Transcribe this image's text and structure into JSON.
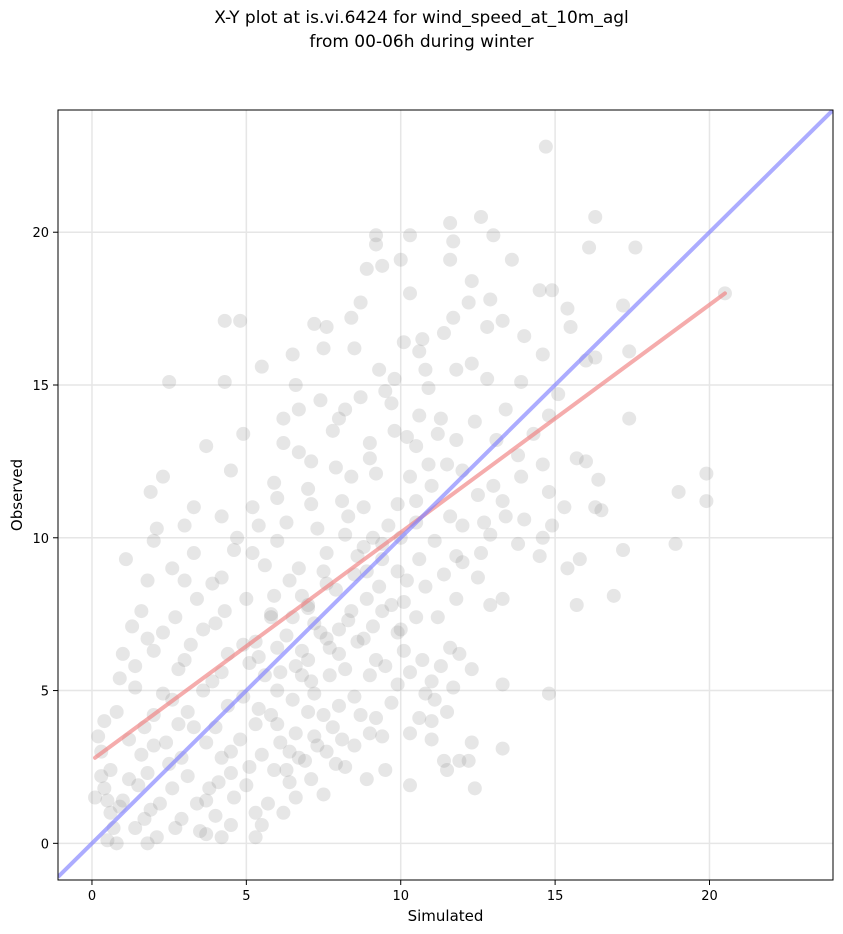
{
  "chart_data": {
    "type": "scatter",
    "title_line1": "X-Y plot at is.vi.6424 for wind_speed_at_10m_agl",
    "title_line2": "from 00-06h during winter",
    "xlabel": "Simulated",
    "ylabel": "Observed",
    "xlim": [
      -1.1,
      24
    ],
    "ylim": [
      -1.2,
      24
    ],
    "xticks": [
      0,
      5,
      10,
      15,
      20
    ],
    "yticks": [
      0,
      5,
      10,
      15,
      20
    ],
    "grid": true,
    "colors": {
      "points": "#808080",
      "fit_line": "#f08080",
      "identity_line": "#7f7fff",
      "grid": "#e6e6e6"
    },
    "regression_line": {
      "x": [
        0.1,
        20.5
      ],
      "y": [
        2.8,
        18.0
      ]
    },
    "identity_line": {
      "x": [
        -1.1,
        24
      ],
      "y": [
        -1.1,
        24
      ]
    },
    "points_sample": [
      [
        14.7,
        22.8
      ],
      [
        12.6,
        20.5
      ],
      [
        16.3,
        20.5
      ],
      [
        11.6,
        20.3
      ],
      [
        9.2,
        19.9
      ],
      [
        10.3,
        19.9
      ],
      [
        13.0,
        19.9
      ],
      [
        11.7,
        19.7
      ],
      [
        16.1,
        19.5
      ],
      [
        17.6,
        19.5
      ],
      [
        9.2,
        19.6
      ],
      [
        10.0,
        19.1
      ],
      [
        11.6,
        19.1
      ],
      [
        13.6,
        19.1
      ],
      [
        9.4,
        18.9
      ],
      [
        8.9,
        18.8
      ],
      [
        12.3,
        18.4
      ],
      [
        14.5,
        18.1
      ],
      [
        14.9,
        18.1
      ],
      [
        20.5,
        18.0
      ],
      [
        10.3,
        18.0
      ],
      [
        12.9,
        17.8
      ],
      [
        12.2,
        17.7
      ],
      [
        8.7,
        17.7
      ],
      [
        15.4,
        17.5
      ],
      [
        17.2,
        17.6
      ],
      [
        11.7,
        17.2
      ],
      [
        8.4,
        17.2
      ],
      [
        13.3,
        17.1
      ],
      [
        7.2,
        17.0
      ],
      [
        4.3,
        17.1
      ],
      [
        4.8,
        17.1
      ],
      [
        7.6,
        16.9
      ],
      [
        14.0,
        16.6
      ],
      [
        15.5,
        16.9
      ],
      [
        12.8,
        16.9
      ],
      [
        10.7,
        16.5
      ],
      [
        10.1,
        16.4
      ],
      [
        8.5,
        16.2
      ],
      [
        7.5,
        16.2
      ],
      [
        6.5,
        16.0
      ],
      [
        14.6,
        16.0
      ],
      [
        17.4,
        16.1
      ],
      [
        16.0,
        15.8
      ],
      [
        16.3,
        15.9
      ],
      [
        9.3,
        15.5
      ],
      [
        10.8,
        15.5
      ],
      [
        5.5,
        15.6
      ],
      [
        2.5,
        15.1
      ],
      [
        4.3,
        15.1
      ],
      [
        6.6,
        15.0
      ],
      [
        12.8,
        15.2
      ],
      [
        13.9,
        15.1
      ],
      [
        11.8,
        15.5
      ],
      [
        9.7,
        14.4
      ],
      [
        8.2,
        14.2
      ],
      [
        6.7,
        14.2
      ],
      [
        10.6,
        14.0
      ],
      [
        12.4,
        13.8
      ],
      [
        15.1,
        14.7
      ],
      [
        14.8,
        14.0
      ],
      [
        17.4,
        13.9
      ],
      [
        9.8,
        13.5
      ],
      [
        11.2,
        13.4
      ],
      [
        4.9,
        13.4
      ],
      [
        6.2,
        13.1
      ],
      [
        3.7,
        13.0
      ],
      [
        10.5,
        13.0
      ],
      [
        13.8,
        12.7
      ],
      [
        16.0,
        12.5
      ],
      [
        14.6,
        12.4
      ],
      [
        15.7,
        12.6
      ],
      [
        2.3,
        12.0
      ],
      [
        4.5,
        12.2
      ],
      [
        7.9,
        12.3
      ],
      [
        9.2,
        12.1
      ],
      [
        10.3,
        12.0
      ],
      [
        11.0,
        11.7
      ],
      [
        13.0,
        11.7
      ],
      [
        16.4,
        11.9
      ],
      [
        19.9,
        12.1
      ],
      [
        14.8,
        11.5
      ],
      [
        12.5,
        11.4
      ],
      [
        19.0,
        11.5
      ],
      [
        19.9,
        11.2
      ],
      [
        1.9,
        11.5
      ],
      [
        3.3,
        11.0
      ],
      [
        5.2,
        11.0
      ],
      [
        7.1,
        11.1
      ],
      [
        8.8,
        11.0
      ],
      [
        15.3,
        11.0
      ],
      [
        16.5,
        10.9
      ],
      [
        10.5,
        10.5
      ],
      [
        11.6,
        10.7
      ],
      [
        13.4,
        10.7
      ],
      [
        14.0,
        10.6
      ],
      [
        14.9,
        10.4
      ],
      [
        16.3,
        11.0
      ],
      [
        2.1,
        10.3
      ],
      [
        4.7,
        10.0
      ],
      [
        6.0,
        9.9
      ],
      [
        8.2,
        10.1
      ],
      [
        9.1,
        10.0
      ],
      [
        12.9,
        10.1
      ],
      [
        13.8,
        9.8
      ],
      [
        14.6,
        10.0
      ],
      [
        2.0,
        9.9
      ],
      [
        1.1,
        9.3
      ],
      [
        3.3,
        9.5
      ],
      [
        5.2,
        9.5
      ],
      [
        7.6,
        9.5
      ],
      [
        9.4,
        9.3
      ],
      [
        10.6,
        9.3
      ],
      [
        11.8,
        9.4
      ],
      [
        14.5,
        9.4
      ],
      [
        15.8,
        9.3
      ],
      [
        17.2,
        9.6
      ],
      [
        18.9,
        9.8
      ],
      [
        15.4,
        9.0
      ],
      [
        1.8,
        8.6
      ],
      [
        3.0,
        8.6
      ],
      [
        4.2,
        8.7
      ],
      [
        6.4,
        8.6
      ],
      [
        7.6,
        8.5
      ],
      [
        8.5,
        8.8
      ],
      [
        10.2,
        8.6
      ],
      [
        11.4,
        8.8
      ],
      [
        12.5,
        8.7
      ],
      [
        3.4,
        8.0
      ],
      [
        5.9,
        8.1
      ],
      [
        8.9,
        8.0
      ],
      [
        10.1,
        7.9
      ],
      [
        11.8,
        8.0
      ],
      [
        13.3,
        8.0
      ],
      [
        15.7,
        7.8
      ],
      [
        16.9,
        8.1
      ],
      [
        12.9,
        7.8
      ],
      [
        11.2,
        7.4
      ],
      [
        1.6,
        7.6
      ],
      [
        2.7,
        7.4
      ],
      [
        4.3,
        7.6
      ],
      [
        5.8,
        7.5
      ],
      [
        7.0,
        7.7
      ],
      [
        8.3,
        7.3
      ],
      [
        9.4,
        7.6
      ],
      [
        10.5,
        7.4
      ],
      [
        1.3,
        7.1
      ],
      [
        2.3,
        6.9
      ],
      [
        3.6,
        7.0
      ],
      [
        6.3,
        6.8
      ],
      [
        7.4,
        6.9
      ],
      [
        8.6,
        6.6
      ],
      [
        9.9,
        6.9
      ],
      [
        11.6,
        6.4
      ],
      [
        1.0,
        6.2
      ],
      [
        2.0,
        6.3
      ],
      [
        3.2,
        6.5
      ],
      [
        4.4,
        6.2
      ],
      [
        5.4,
        6.1
      ],
      [
        6.8,
        6.3
      ],
      [
        8.0,
        6.2
      ],
      [
        9.2,
        6.0
      ],
      [
        10.7,
        6.0
      ],
      [
        11.9,
        6.2
      ],
      [
        12.3,
        5.7
      ],
      [
        1.4,
        5.8
      ],
      [
        2.8,
        5.7
      ],
      [
        4.2,
        5.6
      ],
      [
        5.6,
        5.5
      ],
      [
        6.6,
        5.8
      ],
      [
        7.7,
        5.5
      ],
      [
        9.0,
        5.5
      ],
      [
        10.3,
        5.6
      ],
      [
        11.3,
        5.8
      ],
      [
        13.3,
        5.2
      ],
      [
        11.7,
        5.1
      ],
      [
        14.8,
        4.9
      ],
      [
        1.4,
        5.1
      ],
      [
        2.3,
        4.9
      ],
      [
        3.6,
        5.0
      ],
      [
        4.9,
        4.8
      ],
      [
        6.0,
        5.0
      ],
      [
        7.2,
        4.9
      ],
      [
        8.5,
        4.8
      ],
      [
        9.7,
        4.6
      ],
      [
        11.1,
        4.7
      ],
      [
        0.8,
        4.3
      ],
      [
        2.0,
        4.2
      ],
      [
        3.1,
        4.3
      ],
      [
        4.4,
        4.5
      ],
      [
        5.8,
        4.2
      ],
      [
        7.0,
        4.3
      ],
      [
        8.0,
        4.5
      ],
      [
        9.2,
        4.1
      ],
      [
        10.6,
        4.1
      ],
      [
        11.0,
        4.0
      ],
      [
        11.5,
        4.3
      ],
      [
        0.4,
        4.0
      ],
      [
        1.7,
        3.8
      ],
      [
        2.8,
        3.9
      ],
      [
        4.0,
        3.8
      ],
      [
        5.3,
        3.9
      ],
      [
        6.6,
        3.6
      ],
      [
        7.8,
        3.8
      ],
      [
        9.0,
        3.6
      ],
      [
        10.3,
        3.6
      ],
      [
        0.2,
        3.5
      ],
      [
        1.2,
        3.4
      ],
      [
        2.4,
        3.3
      ],
      [
        3.7,
        3.3
      ],
      [
        4.8,
        3.4
      ],
      [
        6.1,
        3.3
      ],
      [
        7.3,
        3.2
      ],
      [
        8.5,
        3.2
      ],
      [
        9.4,
        3.5
      ],
      [
        11.0,
        3.4
      ],
      [
        12.3,
        3.3
      ],
      [
        13.3,
        3.1
      ],
      [
        0.3,
        3.0
      ],
      [
        1.6,
        2.9
      ],
      [
        2.9,
        2.8
      ],
      [
        4.2,
        2.8
      ],
      [
        5.5,
        2.9
      ],
      [
        6.7,
        2.8
      ],
      [
        7.9,
        2.6
      ],
      [
        9.5,
        2.4
      ],
      [
        11.9,
        2.7
      ],
      [
        12.2,
        2.7
      ],
      [
        0.6,
        2.4
      ],
      [
        1.8,
        2.3
      ],
      [
        3.1,
        2.2
      ],
      [
        4.5,
        2.3
      ],
      [
        5.9,
        2.4
      ],
      [
        7.1,
        2.1
      ],
      [
        8.2,
        2.5
      ],
      [
        11.4,
        2.7
      ],
      [
        11.5,
        2.4
      ],
      [
        0.4,
        1.8
      ],
      [
        1.5,
        1.9
      ],
      [
        2.6,
        1.8
      ],
      [
        3.8,
        1.8
      ],
      [
        5.0,
        1.9
      ],
      [
        6.4,
        2.0
      ],
      [
        7.5,
        1.6
      ],
      [
        8.9,
        2.1
      ],
      [
        10.3,
        1.9
      ],
      [
        12.4,
        1.8
      ],
      [
        0.1,
        1.5
      ],
      [
        1.0,
        1.4
      ],
      [
        2.2,
        1.3
      ],
      [
        3.4,
        1.3
      ],
      [
        4.6,
        1.5
      ],
      [
        6.6,
        1.5
      ],
      [
        5.3,
        1.0
      ],
      [
        0.6,
        1.0
      ],
      [
        1.7,
        0.8
      ],
      [
        2.9,
        0.8
      ],
      [
        4.0,
        0.9
      ],
      [
        5.5,
        0.6
      ],
      [
        6.2,
        1.0
      ],
      [
        0.7,
        0.5
      ],
      [
        1.4,
        0.5
      ],
      [
        2.7,
        0.5
      ],
      [
        3.5,
        0.4
      ],
      [
        4.5,
        0.6
      ],
      [
        0.5,
        0.1
      ],
      [
        1.8,
        0.0
      ],
      [
        3.7,
        0.3
      ],
      [
        4.2,
        0.2
      ],
      [
        5.3,
        0.2
      ],
      [
        0.8,
        0.0
      ],
      [
        2.1,
        0.2
      ],
      [
        9.5,
        14.8
      ],
      [
        10.9,
        14.9
      ],
      [
        8.0,
        13.9
      ],
      [
        9.0,
        13.1
      ],
      [
        11.8,
        13.2
      ],
      [
        13.1,
        13.2
      ],
      [
        7.1,
        12.5
      ],
      [
        8.4,
        12.0
      ],
      [
        10.9,
        12.4
      ],
      [
        12.0,
        12.2
      ],
      [
        6.0,
        11.3
      ],
      [
        9.9,
        11.1
      ],
      [
        12.0,
        10.4
      ],
      [
        7.3,
        10.3
      ],
      [
        10.0,
        10.0
      ],
      [
        11.1,
        9.9
      ],
      [
        6.7,
        9.0
      ],
      [
        8.6,
        9.4
      ],
      [
        9.9,
        8.9
      ],
      [
        12.0,
        9.2
      ],
      [
        6.8,
        8.1
      ],
      [
        7.9,
        8.3
      ],
      [
        9.3,
        8.4
      ],
      [
        10.8,
        8.4
      ],
      [
        6.5,
        7.4
      ],
      [
        7.2,
        7.2
      ],
      [
        8.0,
        7.0
      ],
      [
        9.1,
        7.1
      ],
      [
        10.0,
        7.0
      ],
      [
        5.3,
        6.6
      ],
      [
        6.0,
        6.4
      ],
      [
        7.0,
        6.0
      ],
      [
        7.7,
        6.4
      ],
      [
        8.8,
        6.7
      ],
      [
        10.1,
        6.3
      ],
      [
        5.1,
        5.9
      ],
      [
        6.1,
        5.6
      ],
      [
        7.1,
        5.3
      ],
      [
        8.2,
        5.7
      ],
      [
        9.5,
        5.8
      ],
      [
        5.4,
        4.4
      ],
      [
        6.5,
        4.7
      ],
      [
        7.5,
        4.2
      ],
      [
        8.7,
        4.2
      ],
      [
        6.0,
        3.9
      ],
      [
        7.2,
        3.5
      ],
      [
        8.1,
        3.4
      ],
      [
        4.5,
        3.0
      ],
      [
        6.4,
        3.0
      ],
      [
        7.6,
        3.0
      ],
      [
        5.1,
        2.5
      ],
      [
        6.3,
        2.4
      ],
      [
        6.9,
        2.7
      ],
      [
        3.7,
        1.4
      ],
      [
        4.1,
        2.0
      ],
      [
        5.7,
        1.3
      ],
      [
        1.9,
        1.1
      ],
      [
        2.5,
        2.6
      ],
      [
        3.3,
        3.8
      ],
      [
        2.0,
        3.2
      ],
      [
        1.2,
        2.1
      ],
      [
        0.9,
        1.2
      ],
      [
        2.6,
        4.7
      ],
      [
        3.9,
        5.3
      ],
      [
        4.9,
        6.5
      ],
      [
        3.0,
        6.0
      ],
      [
        4.0,
        7.2
      ],
      [
        5.0,
        8.0
      ],
      [
        3.9,
        8.5
      ],
      [
        4.6,
        9.6
      ],
      [
        5.4,
        10.4
      ],
      [
        4.2,
        10.7
      ],
      [
        5.9,
        11.8
      ],
      [
        6.7,
        12.8
      ],
      [
        7.8,
        13.5
      ],
      [
        8.7,
        14.6
      ],
      [
        7.4,
        14.5
      ],
      [
        6.2,
        13.9
      ],
      [
        9.8,
        15.2
      ],
      [
        10.6,
        16.1
      ],
      [
        11.4,
        16.7
      ],
      [
        12.3,
        15.7
      ],
      [
        13.4,
        14.2
      ],
      [
        14.3,
        13.4
      ],
      [
        13.9,
        12.0
      ],
      [
        13.3,
        11.2
      ],
      [
        12.7,
        10.5
      ],
      [
        12.6,
        9.5
      ],
      [
        11.0,
        5.3
      ],
      [
        10.8,
        4.9
      ],
      [
        9.9,
        5.2
      ],
      [
        3.0,
        10.4
      ],
      [
        2.6,
        9.0
      ],
      [
        1.8,
        6.7
      ],
      [
        0.9,
        5.4
      ],
      [
        0.3,
        2.2
      ],
      [
        0.5,
        1.4
      ],
      [
        8.3,
        10.7
      ],
      [
        8.8,
        9.7
      ],
      [
        9.6,
        10.4
      ],
      [
        7.5,
        8.9
      ],
      [
        7.0,
        7.8
      ],
      [
        8.4,
        7.6
      ],
      [
        6.8,
        5.5
      ],
      [
        7.6,
        6.7
      ],
      [
        5.8,
        7.4
      ],
      [
        5.6,
        9.1
      ],
      [
        6.3,
        10.5
      ],
      [
        7.0,
        11.6
      ],
      [
        8.1,
        11.2
      ],
      [
        9.0,
        12.6
      ],
      [
        10.2,
        13.3
      ],
      [
        11.3,
        13.9
      ],
      [
        9.4,
        9.8
      ],
      [
        10.5,
        11.2
      ],
      [
        11.5,
        12.4
      ],
      [
        8.9,
        8.9
      ],
      [
        9.7,
        7.8
      ]
    ]
  }
}
